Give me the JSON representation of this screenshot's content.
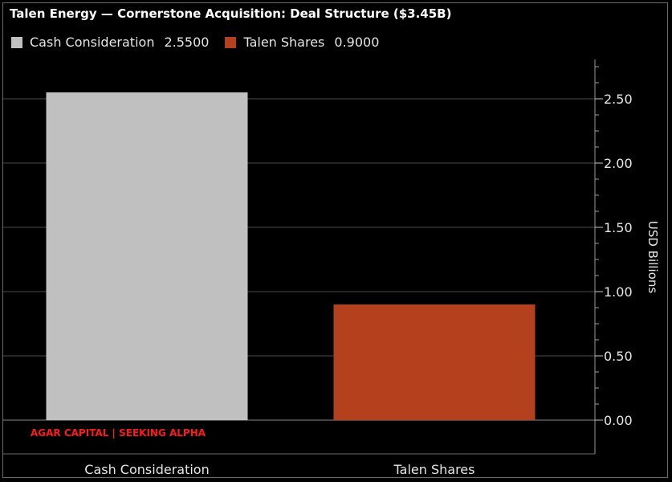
{
  "chart_data": {
    "type": "bar",
    "title": "Talen Energy — Cornerstone Acquisition: Deal Structure ($3.45B)",
    "categories": [
      "Cash Consideration",
      "Talen Shares"
    ],
    "values": [
      2.55,
      0.9
    ],
    "series": [
      {
        "name": "Cash Consideration",
        "value_label": "2.5500",
        "color": "#c0c0c0"
      },
      {
        "name": "Talen Shares",
        "value_label": "0.9000",
        "color": "#b5401e"
      }
    ],
    "ylabel": "USD Billions",
    "ylim": [
      0,
      2.75
    ],
    "yticks": [
      0,
      0.5,
      1,
      1.5,
      2,
      2.5
    ],
    "ytick_labels": [
      "0.00",
      "0.50",
      "1.00",
      "1.50",
      "2.00",
      "2.50"
    ],
    "y_axis_position": "right",
    "grid": true,
    "legend": "top-left"
  },
  "source": "AGAR CAPITAL | SEEKING ALPHA"
}
